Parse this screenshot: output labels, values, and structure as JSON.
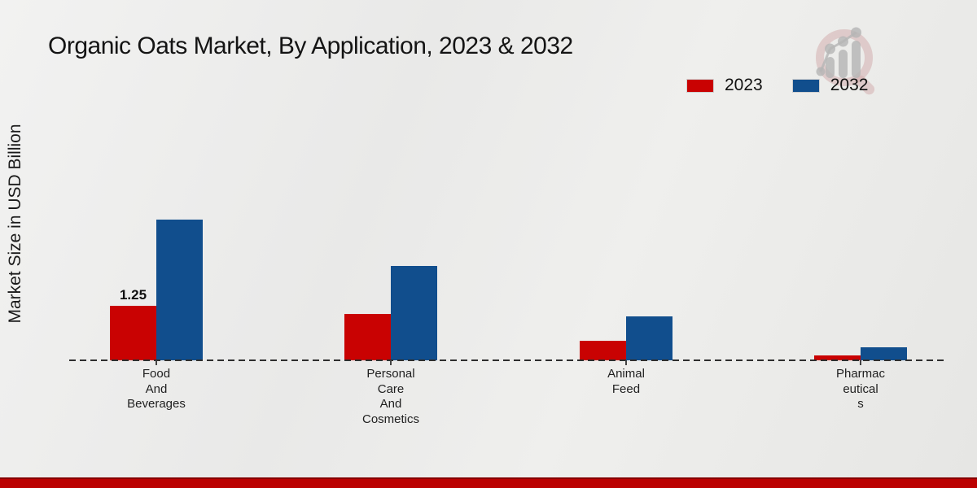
{
  "title": "Organic Oats Market, By Application, 2023 & 2032",
  "y_axis_label": "Market Size in USD Billion",
  "legend": {
    "position": "top-right",
    "items": [
      {
        "label": "2023",
        "color": "#c90202"
      },
      {
        "label": "2032",
        "color": "#114e8d"
      }
    ]
  },
  "chart_data": {
    "type": "bar",
    "title": "Organic Oats Market, By Application, 2023 & 2032",
    "categories": [
      "Food And Beverages",
      "Personal Care And Cosmetics",
      "Animal Feed",
      "Pharmaceuticals"
    ],
    "category_label_lines": [
      [
        "Food",
        "And",
        "Beverages"
      ],
      [
        "Personal",
        "Care",
        "And",
        "Cosmetics"
      ],
      [
        "Animal",
        "Feed"
      ],
      [
        "Pharmac",
        "eutical",
        "s"
      ]
    ],
    "series": [
      {
        "name": "2023",
        "color": "#c90202",
        "values": [
          1.25,
          1.05,
          0.45,
          0.11
        ]
      },
      {
        "name": "2032",
        "color": "#114e8d",
        "values": [
          3.2,
          2.15,
          1.0,
          0.29
        ]
      }
    ],
    "annotations": [
      {
        "series": "2023",
        "category_index": 0,
        "text": "1.25"
      }
    ],
    "xlabel": "",
    "ylabel": "Market Size in USD Billion",
    "ylim": [
      0,
      3.6
    ],
    "grid": false,
    "legend_position": "top-right",
    "baseline_style": "dashed"
  },
  "branding": {
    "logo_name": "market-research-future-logo",
    "footer_accent_color": "#bb0101"
  }
}
